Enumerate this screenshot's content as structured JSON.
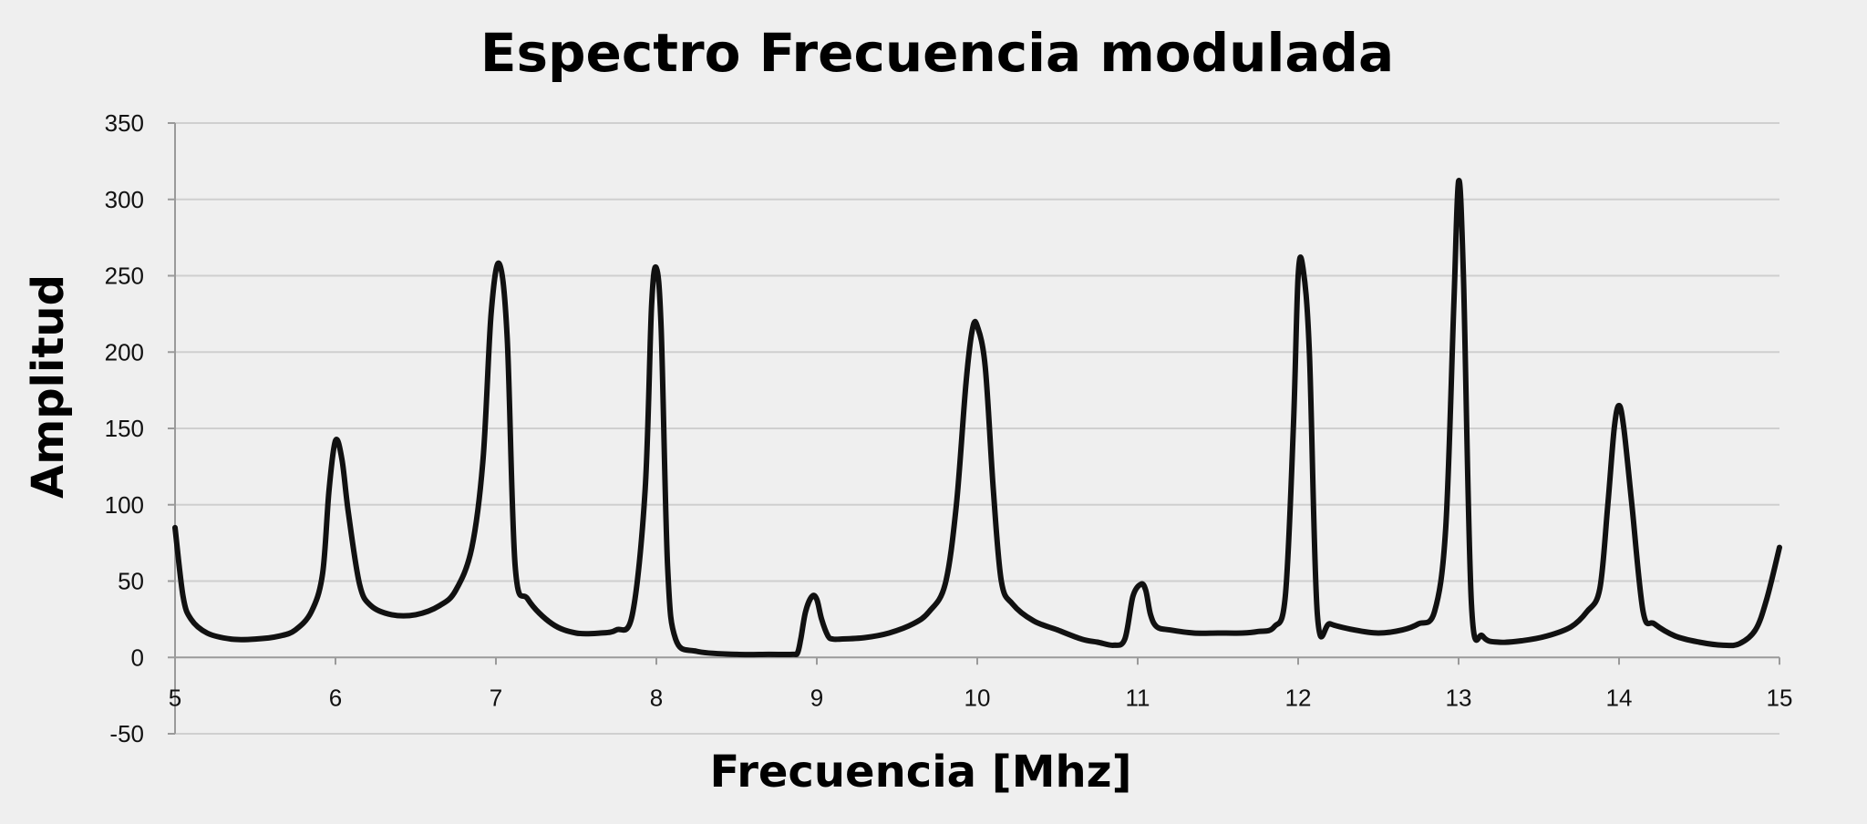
{
  "chart_data": {
    "type": "line",
    "title": "Espectro Frecuencia modulada",
    "xlabel": "Frecuencia [Mhz]",
    "ylabel": "Amplitud",
    "xlim": [
      5,
      15
    ],
    "ylim": [
      -50,
      350
    ],
    "x_ticks": [
      5,
      6,
      7,
      8,
      9,
      10,
      11,
      12,
      13,
      14,
      15
    ],
    "y_ticks": [
      -50,
      0,
      50,
      100,
      150,
      200,
      250,
      300,
      350
    ],
    "grid": true,
    "legend": "none",
    "series": [
      {
        "color": "#111111",
        "x": [
          5.0,
          5.05,
          5.1,
          5.2,
          5.35,
          5.5,
          5.65,
          5.75,
          5.85,
          5.92,
          5.96,
          6.0,
          6.04,
          6.08,
          6.15,
          6.22,
          6.35,
          6.5,
          6.65,
          6.75,
          6.85,
          6.92,
          6.97,
          7.02,
          7.07,
          7.12,
          7.2,
          7.35,
          7.5,
          7.65,
          7.75,
          7.85,
          7.93,
          7.97,
          8.0,
          8.03,
          8.07,
          8.12,
          8.25,
          8.5,
          8.7,
          8.85,
          8.88,
          8.9,
          8.93,
          8.97,
          9.0,
          9.03,
          9.07,
          9.1,
          9.15,
          9.3,
          9.45,
          9.6,
          9.7,
          9.8,
          9.87,
          9.93,
          9.97,
          10.0,
          10.05,
          10.1,
          10.15,
          10.22,
          10.35,
          10.5,
          10.65,
          10.75,
          10.85,
          10.92,
          10.97,
          11.02,
          11.05,
          11.08,
          11.12,
          11.2,
          11.35,
          11.5,
          11.65,
          11.75,
          11.85,
          11.92,
          11.97,
          12.0,
          12.03,
          12.07,
          12.12,
          12.2,
          12.35,
          12.5,
          12.65,
          12.75,
          12.85,
          12.92,
          12.97,
          13.0,
          13.03,
          13.08,
          13.15,
          13.25,
          13.4,
          13.55,
          13.7,
          13.8,
          13.88,
          13.93,
          13.97,
          14.0,
          14.03,
          14.08,
          14.15,
          14.22,
          14.35,
          14.5,
          14.65,
          14.75,
          14.85,
          14.92,
          15.0
        ],
        "y": [
          85,
          40,
          25,
          16,
          12,
          12,
          14,
          18,
          30,
          55,
          110,
          142,
          130,
          95,
          48,
          34,
          28,
          28,
          34,
          44,
          72,
          130,
          225,
          258,
          210,
          60,
          38,
          22,
          16,
          16,
          18,
          28,
          110,
          230,
          255,
          215,
          60,
          12,
          4,
          2,
          2,
          2,
          3,
          12,
          30,
          40,
          38,
          25,
          14,
          12,
          12,
          13,
          16,
          22,
          30,
          48,
          100,
          180,
          215,
          217,
          190,
          110,
          50,
          35,
          24,
          18,
          12,
          10,
          8,
          12,
          40,
          48,
          44,
          28,
          20,
          18,
          16,
          16,
          16,
          17,
          20,
          40,
          150,
          250,
          255,
          200,
          28,
          22,
          18,
          16,
          18,
          22,
          30,
          85,
          230,
          312,
          250,
          35,
          14,
          10,
          11,
          14,
          20,
          30,
          45,
          100,
          150,
          165,
          150,
          100,
          30,
          22,
          14,
          10,
          8,
          9,
          18,
          38,
          72
        ]
      }
    ]
  }
}
